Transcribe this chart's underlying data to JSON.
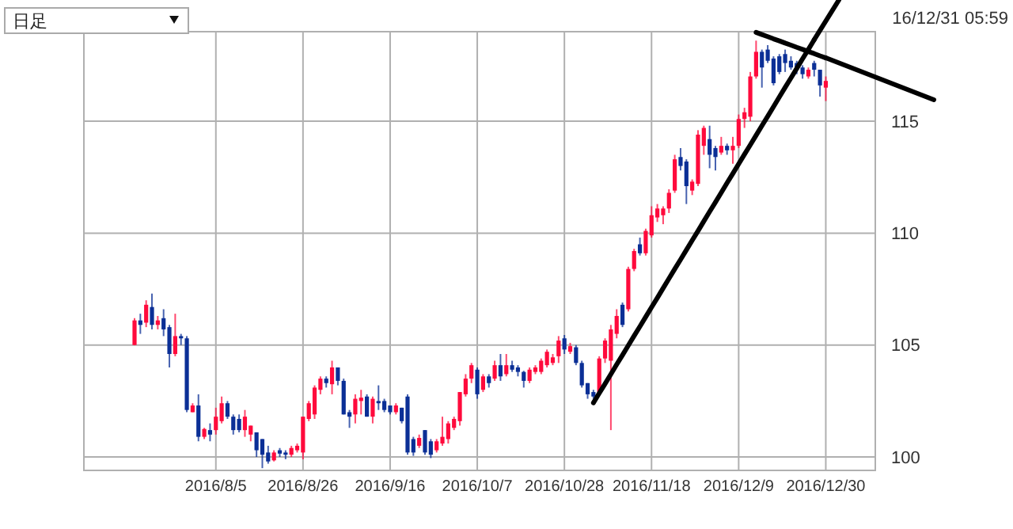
{
  "chart_data": {
    "type": "candlestick",
    "annotations": [
      "日足",
      "16/12/31 05:59"
    ],
    "categories": [
      null,
      null,
      null,
      null,
      null,
      null,
      null,
      null,
      null,
      null,
      null,
      null,
      null,
      null,
      "2016/8/5",
      null,
      null,
      null,
      null,
      null,
      null,
      null,
      null,
      null,
      null,
      null,
      null,
      null,
      null,
      "2016/8/26",
      null,
      null,
      null,
      null,
      null,
      null,
      null,
      null,
      null,
      null,
      null,
      null,
      null,
      null,
      "2016/9/16",
      null,
      null,
      null,
      null,
      null,
      null,
      null,
      null,
      null,
      null,
      null,
      null,
      null,
      null,
      "2016/10/7",
      null,
      null,
      null,
      null,
      null,
      null,
      null,
      null,
      null,
      null,
      null,
      null,
      null,
      null,
      "2016/10/28",
      null,
      null,
      null,
      null,
      null,
      null,
      null,
      null,
      null,
      null,
      null,
      null,
      null,
      null,
      "2016/11/18",
      null,
      null,
      null,
      null,
      null,
      null,
      null,
      null,
      null,
      null,
      null,
      null,
      null,
      null,
      "2016/12/9",
      null,
      null,
      null,
      null,
      null,
      null,
      null,
      null,
      null,
      null,
      null,
      null,
      null,
      null,
      "2016/12/30"
    ],
    "ohlc": [
      [
        105.0,
        106.2,
        105.0,
        106.1
      ],
      [
        106.1,
        106.4,
        105.5,
        105.9
      ],
      [
        106.0,
        107.0,
        105.8,
        106.8
      ],
      [
        106.7,
        107.3,
        105.7,
        105.9
      ],
      [
        105.9,
        106.3,
        105.7,
        106.1
      ],
      [
        106.2,
        106.6,
        105.4,
        105.7
      ],
      [
        105.8,
        105.9,
        104.0,
        104.6
      ],
      [
        104.6,
        106.4,
        104.5,
        105.4
      ],
      [
        105.4,
        105.5,
        105.0,
        105.3
      ],
      [
        105.3,
        105.4,
        102.0,
        102.1
      ],
      [
        102.0,
        102.4,
        102.0,
        102.3
      ],
      [
        102.3,
        102.8,
        100.7,
        100.9
      ],
      [
        100.9,
        101.3,
        100.8,
        101.25
      ],
      [
        101.2,
        101.5,
        100.7,
        101.0
      ],
      [
        101.2,
        102.2,
        101.0,
        101.8
      ],
      [
        101.6,
        102.7,
        101.5,
        102.4
      ],
      [
        102.4,
        102.5,
        101.7,
        101.8
      ],
      [
        101.8,
        101.9,
        101.0,
        101.2
      ],
      [
        101.7,
        101.9,
        101.1,
        101.2
      ],
      [
        101.2,
        102.1,
        100.9,
        101.8
      ],
      [
        101.0,
        101.4,
        100.7,
        101.4
      ],
      [
        101.1,
        101.1,
        100.0,
        100.3
      ],
      [
        100.8,
        100.8,
        99.5,
        100.1
      ],
      [
        100.2,
        100.5,
        99.7,
        99.8
      ],
      [
        99.85,
        100.3,
        99.8,
        100.2
      ],
      [
        100.3,
        100.4,
        100.0,
        100.15
      ],
      [
        100.2,
        100.3,
        99.9,
        100.1
      ],
      [
        100.1,
        100.5,
        100.0,
        100.4
      ],
      [
        100.3,
        100.6,
        100.2,
        100.5
      ],
      [
        100.2,
        101.8,
        99.9,
        101.8
      ],
      [
        101.7,
        102.5,
        101.6,
        102.4
      ],
      [
        101.9,
        103.2,
        101.7,
        103.1
      ],
      [
        103.0,
        103.6,
        102.8,
        103.5
      ],
      [
        103.5,
        103.6,
        103.1,
        103.3
      ],
      [
        103.25,
        104.3,
        102.8,
        104.0
      ],
      [
        104.0,
        104.0,
        103.2,
        103.4
      ],
      [
        103.4,
        103.5,
        101.9,
        101.9
      ],
      [
        102.0,
        102.1,
        101.3,
        101.8
      ],
      [
        101.9,
        102.8,
        101.5,
        102.6
      ],
      [
        102.5,
        103.0,
        101.9,
        102.65
      ],
      [
        102.7,
        102.8,
        101.8,
        101.8
      ],
      [
        101.8,
        102.7,
        101.5,
        102.6
      ],
      [
        102.5,
        103.2,
        102.1,
        102.4
      ],
      [
        102.5,
        102.6,
        102.0,
        102.1
      ],
      [
        102.3,
        102.3,
        101.9,
        102.0
      ],
      [
        102.0,
        102.4,
        101.9,
        102.3
      ],
      [
        102.2,
        102.2,
        101.5,
        101.6
      ],
      [
        102.7,
        102.8,
        100.1,
        100.2
      ],
      [
        100.8,
        100.9,
        100.05,
        100.2
      ],
      [
        100.5,
        101.0,
        100.4,
        100.85
      ],
      [
        101.2,
        101.2,
        100.1,
        100.2
      ],
      [
        100.7,
        100.8,
        99.95,
        100.1
      ],
      [
        100.3,
        100.8,
        100.2,
        100.7
      ],
      [
        100.6,
        101.8,
        100.5,
        100.9
      ],
      [
        100.8,
        101.6,
        100.6,
        101.5
      ],
      [
        101.3,
        101.8,
        101.2,
        101.7
      ],
      [
        101.6,
        102.9,
        101.4,
        102.9
      ],
      [
        102.8,
        103.7,
        102.7,
        103.5
      ],
      [
        103.5,
        104.2,
        103.3,
        104.1
      ],
      [
        103.9,
        104.0,
        102.6,
        102.8
      ],
      [
        103.0,
        103.7,
        102.9,
        103.6
      ],
      [
        103.6,
        103.7,
        103.1,
        103.3
      ],
      [
        103.5,
        104.3,
        103.4,
        104.1
      ],
      [
        104.1,
        104.6,
        103.4,
        103.6
      ],
      [
        103.7,
        104.6,
        103.6,
        104.1
      ],
      [
        104.1,
        104.3,
        103.8,
        103.9
      ],
      [
        104.0,
        104.1,
        103.6,
        103.8
      ],
      [
        103.8,
        103.85,
        103.1,
        103.4
      ],
      [
        103.4,
        104.0,
        103.3,
        103.9
      ],
      [
        103.8,
        104.1,
        103.7,
        104.0
      ],
      [
        103.8,
        104.4,
        103.7,
        104.3
      ],
      [
        104.1,
        104.8,
        104.0,
        104.7
      ],
      [
        104.2,
        104.6,
        104.1,
        104.45
      ],
      [
        104.5,
        105.4,
        104.2,
        105.2
      ],
      [
        105.3,
        105.45,
        104.6,
        104.8
      ],
      [
        104.7,
        105.1,
        104.6,
        104.95
      ],
      [
        104.9,
        105.0,
        104.1,
        104.2
      ],
      [
        104.2,
        104.3,
        103.1,
        103.2
      ],
      [
        103.3,
        103.3,
        102.6,
        102.8
      ],
      [
        102.9,
        103.0,
        102.6,
        102.7
      ],
      [
        102.9,
        104.5,
        102.8,
        104.4
      ],
      [
        104.4,
        105.3,
        104.2,
        105.2
      ],
      [
        104.3,
        105.9,
        101.2,
        105.7
      ],
      [
        105.5,
        106.6,
        105.3,
        106.3
      ],
      [
        106.8,
        106.9,
        105.8,
        105.9
      ],
      [
        106.6,
        108.5,
        106.5,
        108.4
      ],
      [
        108.4,
        109.3,
        108.3,
        109.2
      ],
      [
        109.5,
        109.8,
        109.0,
        109.1
      ],
      [
        109.1,
        110.2,
        109.0,
        110.1
      ],
      [
        109.9,
        111.2,
        109.8,
        110.8
      ],
      [
        110.7,
        111.3,
        110.5,
        111.1
      ],
      [
        110.8,
        111.2,
        110.4,
        111.1
      ],
      [
        111.1,
        111.96,
        110.9,
        111.8
      ],
      [
        111.9,
        113.5,
        111.8,
        113.3
      ],
      [
        113.4,
        113.8,
        112.8,
        113.0
      ],
      [
        113.2,
        113.3,
        111.3,
        112.1
      ],
      [
        111.9,
        112.4,
        111.7,
        112.3
      ],
      [
        112.2,
        114.6,
        112.1,
        114.4
      ],
      [
        113.9,
        114.8,
        113.5,
        114.7
      ],
      [
        114.2,
        114.8,
        112.9,
        113.5
      ],
      [
        113.8,
        113.9,
        112.8,
        113.4
      ],
      [
        113.6,
        114.3,
        113.5,
        113.9
      ],
      [
        113.9,
        114.0,
        113.5,
        113.7
      ],
      [
        113.7,
        114.3,
        113.1,
        113.9
      ],
      [
        113.9,
        115.3,
        113.8,
        115.1
      ],
      [
        115.1,
        115.6,
        114.7,
        115.4
      ],
      [
        115.2,
        117.2,
        115.0,
        117.0
      ],
      [
        117.0,
        118.6,
        116.9,
        118.1
      ],
      [
        118.1,
        118.2,
        116.5,
        117.4
      ],
      [
        118.2,
        118.4,
        117.6,
        117.7
      ],
      [
        117.8,
        117.9,
        116.6,
        116.7
      ],
      [
        117.9,
        118.0,
        117.1,
        117.2
      ],
      [
        118.0,
        118.2,
        117.2,
        117.6
      ],
      [
        117.7,
        117.9,
        117.3,
        117.4
      ],
      [
        117.6,
        117.7,
        117.1,
        117.3
      ],
      [
        117.4,
        117.5,
        116.9,
        117.1
      ],
      [
        117.0,
        117.4,
        116.9,
        117.3
      ],
      [
        117.6,
        117.7,
        117.0,
        117.3
      ],
      [
        117.3,
        117.3,
        116.1,
        116.6
      ],
      [
        116.5,
        117.0,
        115.9,
        116.8
      ]
    ],
    "colors": [
      "#ff0a3c",
      "#0b2f96",
      "#ff0a3c",
      "#0b2f96",
      "#ff0a3c",
      "#0b2f96",
      "#0b2f96",
      "#ff0a3c",
      "#0b2f96",
      "#0b2f96",
      "#ff0a3c",
      "#0b2f96",
      "#ff0a3c",
      "#0b2f96",
      "#ff0a3c",
      "#ff0a3c",
      "#0b2f96",
      "#0b2f96",
      "#0b2f96",
      "#ff0a3c",
      "#ff0a3c",
      "#0b2f96",
      "#0b2f96",
      "#0b2f96",
      "#ff0a3c",
      "#0b2f96",
      "#0b2f96",
      "#ff0a3c",
      "#ff0a3c",
      "#ff0a3c",
      "#ff0a3c",
      "#ff0a3c",
      "#ff0a3c",
      "#0b2f96",
      "#ff0a3c",
      "#0b2f96",
      "#0b2f96",
      "#0b2f96",
      "#ff0a3c",
      "#ff0a3c",
      "#0b2f96",
      "#ff0a3c",
      "#0b2f96",
      "#0b2f96",
      "#0b2f96",
      "#ff0a3c",
      "#0b2f96",
      "#0b2f96",
      "#0b2f96",
      "#ff0a3c",
      "#0b2f96",
      "#0b2f96",
      "#ff0a3c",
      "#ff0a3c",
      "#ff0a3c",
      "#ff0a3c",
      "#ff0a3c",
      "#ff0a3c",
      "#ff0a3c",
      "#0b2f96",
      "#ff0a3c",
      "#0b2f96",
      "#ff0a3c",
      "#0b2f96",
      "#ff0a3c",
      "#0b2f96",
      "#0b2f96",
      "#0b2f96",
      "#ff0a3c",
      "#ff0a3c",
      "#ff0a3c",
      "#ff0a3c",
      "#ff0a3c",
      "#ff0a3c",
      "#0b2f96",
      "#ff0a3c",
      "#0b2f96",
      "#0b2f96",
      "#0b2f96",
      "#0b2f96",
      "#ff0a3c",
      "#ff0a3c",
      "#ff0a3c",
      "#ff0a3c",
      "#0b2f96",
      "#ff0a3c",
      "#ff0a3c",
      "#0b2f96",
      "#ff0a3c",
      "#ff0a3c",
      "#ff0a3c",
      "#ff0a3c",
      "#ff0a3c",
      "#ff0a3c",
      "#0b2f96",
      "#0b2f96",
      "#ff0a3c",
      "#ff0a3c",
      "#ff0a3c",
      "#0b2f96",
      "#0b2f96",
      "#ff0a3c",
      "#0b2f96",
      "#ff0a3c",
      "#ff0a3c",
      "#ff0a3c",
      "#ff0a3c",
      "#ff0a3c",
      "#0b2f96",
      "#0b2f96",
      "#0b2f96",
      "#0b2f96",
      "#0b2f96",
      "#0b2f96",
      "#0b2f96",
      "#0b2f96",
      "#ff0a3c",
      "#0b2f96",
      "#0b2f96",
      "#ff0a3c"
    ],
    "series": [
      {
        "type": "line",
        "color": "#000000",
        "values": [
          null,
          null,
          null,
          null,
          null,
          null,
          null,
          null,
          null,
          null,
          null,
          null,
          null,
          null,
          null,
          null,
          null,
          null,
          null,
          null,
          null,
          null,
          null,
          null,
          null,
          null,
          null,
          null,
          null,
          null,
          null,
          null,
          null,
          null,
          null,
          null,
          null,
          null,
          null,
          null,
          null,
          null,
          null,
          null,
          null,
          null,
          null,
          null,
          null,
          null,
          null,
          null,
          null,
          null,
          null,
          null,
          null,
          null,
          null,
          null,
          null,
          null,
          null,
          null,
          null,
          null,
          null,
          null,
          null,
          null,
          null,
          null,
          null,
          null,
          null,
          null,
          null,
          null,
          null,
          102.42,
          102.85,
          103.27,
          103.7,
          104.13,
          104.55,
          104.98,
          105.41,
          105.83,
          106.26,
          106.69,
          107.11,
          107.54,
          107.97,
          108.4,
          108.82,
          109.25,
          109.68,
          110.1,
          110.53,
          110.96,
          111.38,
          111.81,
          112.24,
          112.66,
          113.09,
          113.52,
          113.94,
          114.37,
          114.8,
          115.22,
          115.65,
          116.08,
          116.51,
          116.93,
          117.36,
          117.79,
          118.21,
          118.64,
          null,
          null
        ]
      },
      {
        "type": "line",
        "color": "#000000",
        "values": [
          null,
          null,
          null,
          null,
          null,
          null,
          null,
          null,
          null,
          null,
          null,
          null,
          null,
          null,
          null,
          null,
          null,
          null,
          null,
          null,
          null,
          null,
          null,
          null,
          null,
          null,
          null,
          null,
          null,
          null,
          null,
          null,
          null,
          null,
          null,
          null,
          null,
          null,
          null,
          null,
          null,
          null,
          null,
          null,
          null,
          null,
          null,
          null,
          null,
          null,
          null,
          null,
          null,
          null,
          null,
          null,
          null,
          null,
          null,
          null,
          null,
          null,
          null,
          null,
          null,
          null,
          null,
          null,
          null,
          null,
          null,
          null,
          null,
          null,
          null,
          null,
          null,
          null,
          null,
          null,
          null,
          null,
          null,
          null,
          null,
          null,
          null,
          null,
          null,
          null,
          null,
          null,
          null,
          null,
          null,
          null,
          null,
          null,
          null,
          null,
          null,
          null,
          null,
          null,
          null,
          null,
          null,
          118.97,
          118.87,
          118.78,
          118.68,
          118.59,
          118.49,
          118.4,
          118.3,
          118.21,
          118.11,
          118.02,
          117.92,
          117.83
        ]
      }
    ],
    "ylim": [
      99.4,
      119.0
    ],
    "yticks": [
      100,
      105,
      110,
      115
    ],
    "grid": true
  }
}
